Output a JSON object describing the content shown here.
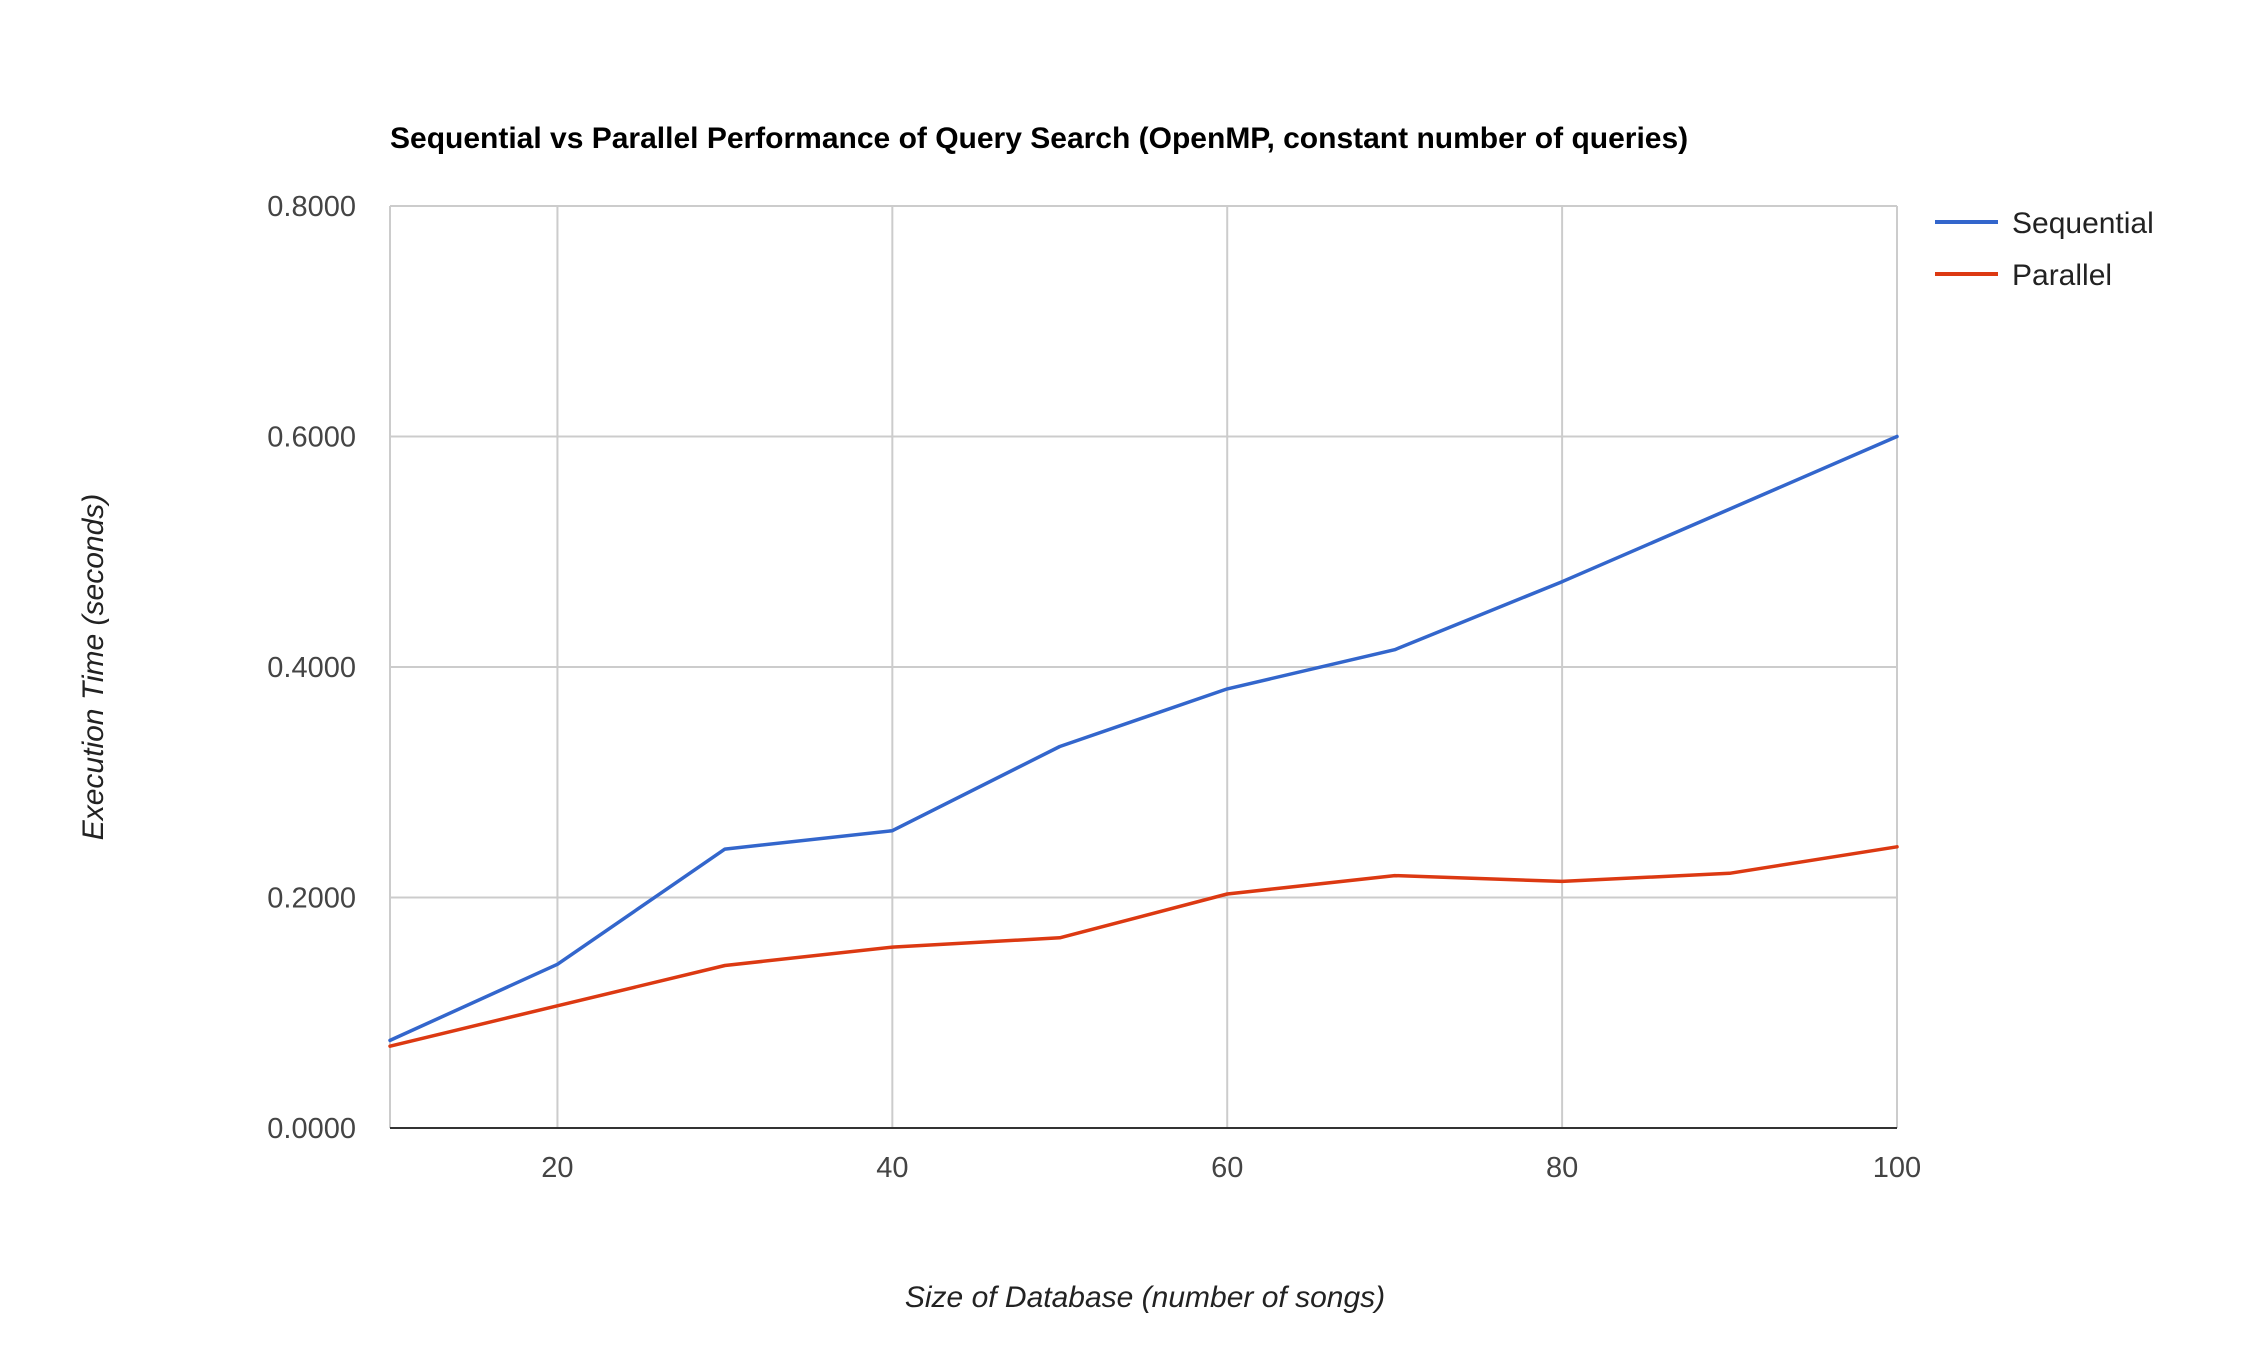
{
  "chart_data": {
    "type": "line",
    "title": "Sequential vs Parallel Performance of Query Search (OpenMP, constant number of queries)",
    "xlabel": "Size of Database (number of songs)",
    "ylabel": "Execution Time (seconds)",
    "x": [
      10,
      20,
      30,
      40,
      50,
      60,
      70,
      80,
      90,
      100
    ],
    "xlim": [
      10,
      100
    ],
    "ylim": [
      0,
      0.8
    ],
    "x_ticks": [
      "20",
      "40",
      "60",
      "80",
      "100"
    ],
    "y_ticks": [
      "0.0000",
      "0.2000",
      "0.4000",
      "0.6000",
      "0.8000"
    ],
    "grid": true,
    "legend_position": "top-right",
    "series": [
      {
        "name": "Sequential",
        "color": "#3366cc",
        "values": [
          0.076,
          0.142,
          0.242,
          0.258,
          0.331,
          0.381,
          0.415,
          0.474,
          0.537,
          0.6
        ]
      },
      {
        "name": "Parallel",
        "color": "#dc3912",
        "values": [
          0.071,
          0.106,
          0.141,
          0.157,
          0.165,
          0.203,
          0.219,
          0.214,
          0.221,
          0.244
        ]
      }
    ]
  }
}
